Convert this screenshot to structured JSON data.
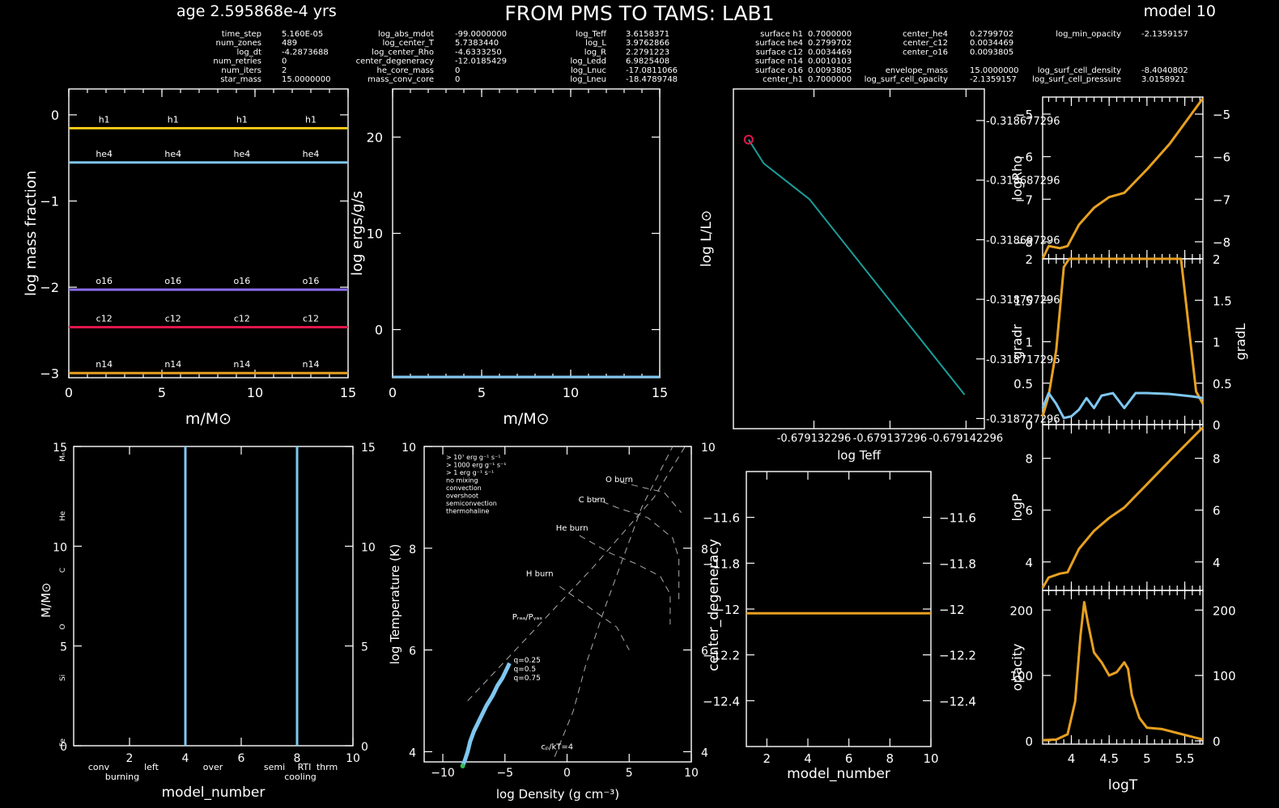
{
  "header": {
    "age": "age 2.595868e-4 yrs",
    "title": "FROM PMS TO TAMS: LAB1",
    "model": "model 10"
  },
  "info": [
    {
      "label": "time_step",
      "value": "5.160E-05"
    },
    {
      "label": "num_zones",
      "value": "489"
    },
    {
      "label": "log_dt",
      "value": "-4.2873688"
    },
    {
      "label": "num_retries",
      "value": "0"
    },
    {
      "label": "num_iters",
      "value": "2"
    },
    {
      "label": "star_mass",
      "value": "15.0000000"
    },
    {
      "label": "log_abs_mdot",
      "value": "-99.0000000"
    },
    {
      "label": "log_center_T",
      "value": "5.7383440"
    },
    {
      "label": "log_center_Rho",
      "value": "-4.6333250"
    },
    {
      "label": "center_degeneracy",
      "value": "-12.0185429"
    },
    {
      "label": "he_core_mass",
      "value": "0"
    },
    {
      "label": "mass_conv_core",
      "value": "0"
    },
    {
      "label": "log_Teff",
      "value": "3.6158371"
    },
    {
      "label": "log_L",
      "value": "3.9762866"
    },
    {
      "label": "log_R",
      "value": "2.2791223"
    },
    {
      "label": "log_Ledd",
      "value": "6.9825408"
    },
    {
      "label": "log_Lnuc",
      "value": "-17.0811066"
    },
    {
      "label": "log_Lneu",
      "value": "-18.4789748"
    },
    {
      "label": "surface h1",
      "value": "0.7000000"
    },
    {
      "label": "surface he4",
      "value": "0.2799702"
    },
    {
      "label": "surface c12",
      "value": "0.0034469"
    },
    {
      "label": "surface n14",
      "value": "0.0010103"
    },
    {
      "label": "surface o16",
      "value": "0.0093805"
    },
    {
      "label": "center_h1",
      "value": "0.7000000"
    },
    {
      "label": "center_he4",
      "value": "0.2799702"
    },
    {
      "label": "center_c12",
      "value": "0.0034469"
    },
    {
      "label": "center_o16",
      "value": "0.0093805"
    },
    {
      "label": "envelope_mass",
      "value": "15.0000000"
    },
    {
      "label": "log_surf_cell_opacity",
      "value": "-2.1359157"
    },
    {
      "label": "log_min_opacity",
      "value": "-2.1359157"
    },
    {
      "label": "log_surf_cell_density",
      "value": "-8.4040802"
    },
    {
      "label": "log_surf_cell_pressure",
      "value": "3.0158921"
    }
  ],
  "chart_data": [
    {
      "id": "abundance",
      "type": "line",
      "xlabel": "m/M⊙",
      "ylabel": "log mass fraction",
      "xlim": [
        0,
        15
      ],
      "ylim": [
        -3.05,
        0.3
      ],
      "xticks": [
        "0",
        "5",
        "10",
        "15"
      ],
      "yticks": [
        "0",
        "−1",
        "−2",
        "−3"
      ],
      "series": [
        {
          "name": "h1",
          "value": -0.155,
          "color": "#f5c518"
        },
        {
          "name": "he4",
          "value": -0.553,
          "color": "#7fc7f0"
        },
        {
          "name": "o16",
          "value": -2.028,
          "color": "#8a6cf0"
        },
        {
          "name": "c12",
          "value": -2.463,
          "color": "#e0174b"
        },
        {
          "name": "n14",
          "value": -2.996,
          "color": "#e6a020"
        }
      ]
    },
    {
      "id": "power",
      "type": "line",
      "xlabel": "m/M⊙",
      "ylabel": "log ergs/g/s",
      "xlim": [
        0,
        15
      ],
      "ylim": [
        -5,
        25
      ],
      "xticks": [
        "0",
        "5",
        "10",
        "15"
      ],
      "yticks": [
        "0",
        "10",
        "20"
      ],
      "series": [
        {
          "x": [
            0,
            15
          ],
          "y": [
            -5,
            -5
          ],
          "color": "#7fc7f0"
        }
      ]
    },
    {
      "id": "hr",
      "type": "line",
      "xlabel": "log Teff",
      "ylabel": "log L/L⊙",
      "yticks": [
        "-0.318677296",
        "-0.318687296",
        "-0.318697296",
        "-0.318707296",
        "-0.318717296",
        "-0.318727296"
      ],
      "xticks": [
        "-0.679132296",
        "-0.679137296",
        "-0.679142296"
      ],
      "series": [
        {
          "x": [
            -0.679128,
            -0.679129,
            -0.6791305,
            -0.679132,
            -0.6791422
          ],
          "y": [
            -0.3186805,
            -0.3186845,
            -0.3186875,
            -0.3186905,
            -0.3187233
          ],
          "color": "#1a9e9a"
        }
      ]
    },
    {
      "id": "tdc",
      "type": "line",
      "xlabel": "model_number",
      "ylabel_left": "M/M⊙",
      "xlim": [
        0,
        10
      ],
      "ylim": [
        0,
        15
      ],
      "xticks": [
        "2",
        "4",
        "6",
        "8",
        "10"
      ],
      "yticks": [
        "0",
        "5",
        "10",
        "15"
      ],
      "vlines": [
        4,
        8
      ],
      "side_labels": [
        "Mₙ",
        "He",
        "C",
        "O",
        "Si",
        "Fe"
      ],
      "legend_top": [
        {
          "t": "conv",
          "c": "#5599ff"
        },
        {
          "t": "left",
          "c": "#3377ff"
        },
        {
          "t": "over",
          "c": "#ffffff"
        },
        {
          "t": "semi",
          "c": "#999999"
        },
        {
          "t": "RTI",
          "c": "#ee5533"
        },
        {
          "t": "thrm",
          "c": "#cc77ff"
        }
      ],
      "legend_bottom": [
        {
          "t": "burning",
          "c": "#ee3344"
        },
        {
          "t": "cooling",
          "c": "#5577ff"
        }
      ]
    },
    {
      "id": "trho",
      "type": "line",
      "xlabel": "log Density (g cm⁻³)",
      "ylabel": "log Temperature (K)",
      "xlim": [
        -11.5,
        10
      ],
      "ylim": [
        3.8,
        10
      ],
      "xticks": [
        "−10",
        "−5",
        "0",
        "5",
        "10"
      ],
      "yticks": [
        "4",
        "6",
        "8",
        "10"
      ],
      "legend": [
        {
          "t": "> 10⁷ erg g⁻¹ s⁻¹",
          "c": "#dd2222"
        },
        {
          "t": "> 1000 erg g⁻¹ s⁻¹",
          "c": "#ee8822"
        },
        {
          "t": "> 1 erg g⁻¹ s⁻¹",
          "c": "#eecc22"
        },
        {
          "t": "no mixing",
          "c": "#777777"
        },
        {
          "t": "convection",
          "c": "#7fc7f0"
        },
        {
          "t": "overshoot",
          "c": "#ffffff"
        },
        {
          "t": "semiconvection",
          "c": "#aaaaaa"
        },
        {
          "t": "thermohaline",
          "c": "#cc77ff"
        }
      ],
      "labels": [
        "O burn",
        "C burn",
        "He burn",
        "H burn",
        "Pᵣₐₐ/Pᵧₐₛ",
        "cₚ/kT=4"
      ],
      "q_labels": [
        "q=0.25",
        "q=0.5",
        "q=0.75"
      ],
      "profile": {
        "x": [
          -8.4,
          -8.2,
          -8.0,
          -7.8,
          -7.5,
          -7.0,
          -6.5,
          -6.0,
          -5.6,
          -5.2,
          -4.9,
          -4.63
        ],
        "y": [
          3.72,
          3.85,
          4.0,
          4.2,
          4.4,
          4.65,
          4.9,
          5.1,
          5.3,
          5.45,
          5.6,
          5.74
        ],
        "color": "#7fc7f0"
      }
    },
    {
      "id": "degen",
      "type": "line",
      "xlabel": "model_number",
      "ylabel": "center_degeneracy",
      "xlim": [
        1,
        10
      ],
      "ylim": [
        -12.6,
        -11.4
      ],
      "xticks": [
        "2",
        "4",
        "6",
        "8",
        "10"
      ],
      "yticks": [
        "−11.6",
        "−11.8",
        "−12",
        "−12.2",
        "−12.4"
      ],
      "series": [
        {
          "x": [
            1,
            10
          ],
          "y": [
            -12.0185,
            -12.0185
          ],
          "color": "#e6a020"
        }
      ]
    },
    {
      "id": "logRho",
      "type": "line",
      "ylabel": "logRho",
      "xlim": [
        3.62,
        5.74
      ],
      "ylim": [
        -8.4,
        -4.6
      ],
      "yticks": [
        "−5",
        "−6",
        "−7",
        "−8"
      ],
      "series": [
        {
          "x": [
            3.62,
            3.7,
            3.85,
            3.95,
            4.1,
            4.3,
            4.5,
            4.7,
            5.0,
            5.3,
            5.74
          ],
          "y": [
            -8.4,
            -8.1,
            -8.15,
            -8.1,
            -7.6,
            -7.2,
            -6.95,
            -6.85,
            -6.3,
            -5.7,
            -4.63
          ],
          "color": "#e6a020"
        }
      ]
    },
    {
      "id": "grad",
      "type": "line",
      "ylabel_left": "gradr",
      "ylabel_right": "gradL",
      "xlim": [
        3.62,
        5.74
      ],
      "ylim": [
        0,
        2
      ],
      "yticks": [
        "0",
        "0.5",
        "1",
        "1.5",
        "2"
      ],
      "series": [
        {
          "name": "gradr",
          "x": [
            3.62,
            3.7,
            3.8,
            3.9,
            3.97,
            5.45,
            5.55,
            5.65,
            5.74
          ],
          "y": [
            0.1,
            0.35,
            0.9,
            1.9,
            2.0,
            2.0,
            1.2,
            0.4,
            0.25
          ],
          "color": "#e6a020"
        },
        {
          "name": "gradL",
          "x": [
            3.62,
            3.7,
            3.8,
            3.9,
            4.0,
            4.1,
            4.2,
            4.3,
            4.4,
            4.55,
            4.7,
            4.85,
            5.0,
            5.3,
            5.6,
            5.74
          ],
          "y": [
            0.2,
            0.38,
            0.25,
            0.08,
            0.1,
            0.18,
            0.32,
            0.2,
            0.35,
            0.38,
            0.2,
            0.38,
            0.38,
            0.37,
            0.34,
            0.32
          ],
          "color": "#7fc7f0"
        }
      ]
    },
    {
      "id": "logP",
      "type": "line",
      "ylabel": "logP",
      "xlim": [
        3.62,
        5.74
      ],
      "ylim": [
        2.9,
        9.3
      ],
      "yticks": [
        "8",
        "6",
        "4"
      ],
      "series": [
        {
          "x": [
            3.62,
            3.7,
            3.85,
            3.95,
            4.1,
            4.3,
            4.5,
            4.7,
            5.0,
            5.3,
            5.74
          ],
          "y": [
            3.0,
            3.4,
            3.55,
            3.6,
            4.5,
            5.2,
            5.7,
            6.1,
            7.0,
            7.9,
            9.2
          ],
          "color": "#e6a020"
        }
      ]
    },
    {
      "id": "opacity",
      "type": "line",
      "ylabel": "opacity",
      "xlabel": "logT",
      "xlim": [
        3.62,
        5.74
      ],
      "ylim": [
        -5,
        230
      ],
      "xticks": [
        "4",
        "4.5",
        "5",
        "5.5"
      ],
      "yticks": [
        "200",
        "100",
        "0"
      ],
      "series": [
        {
          "x": [
            3.62,
            3.8,
            3.95,
            4.05,
            4.12,
            4.17,
            4.22,
            4.3,
            4.4,
            4.5,
            4.6,
            4.7,
            4.75,
            4.8,
            4.9,
            5.0,
            5.2,
            5.4,
            5.6,
            5.74
          ],
          "y": [
            1,
            2,
            10,
            60,
            160,
            212,
            180,
            135,
            120,
            100,
            105,
            120,
            110,
            70,
            35,
            20,
            18,
            12,
            6,
            2
          ],
          "color": "#e6a020"
        }
      ]
    }
  ]
}
